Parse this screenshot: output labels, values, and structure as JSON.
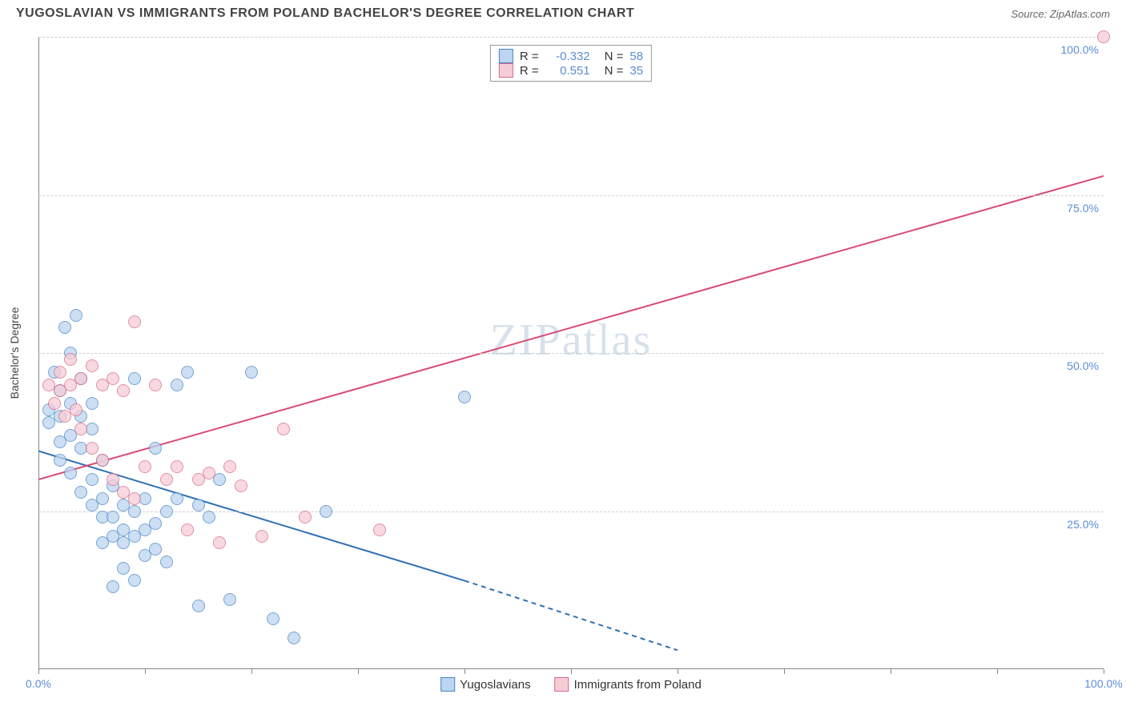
{
  "title": "YUGOSLAVIAN VS IMMIGRANTS FROM POLAND BACHELOR'S DEGREE CORRELATION CHART",
  "source_label": "Source: ",
  "source_value": "ZipAtlas.com",
  "watermark": "ZIPatlas",
  "chart": {
    "type": "scatter",
    "ylabel": "Bachelor's Degree",
    "xlim": [
      0,
      100
    ],
    "ylim": [
      0,
      100
    ],
    "yticks": [
      25,
      50,
      75,
      100
    ],
    "ytick_labels": [
      "25.0%",
      "50.0%",
      "75.0%",
      "100.0%"
    ],
    "xticks_major": [
      0,
      100
    ],
    "xtick_labels": [
      "0.0%",
      "100.0%"
    ],
    "xticks_minor": [
      10,
      20,
      30,
      40,
      50,
      60,
      70,
      80,
      90
    ],
    "grid_color": "#d0d0d0",
    "background_color": "#ffffff",
    "axis_color": "#888888",
    "tick_label_color": "#5b8dd6",
    "marker_size": 16,
    "series": [
      {
        "name": "Yugoslavians",
        "fill": "#bcd5f0",
        "stroke": "#4a86c5",
        "r_label": "R =",
        "r_value": "-0.332",
        "n_label": "N =",
        "n_value": "58",
        "trend": {
          "x1": 0,
          "y1": 34.5,
          "x2_solid": 40,
          "y2_solid": 14,
          "x2_dash": 60,
          "y2_dash": 3,
          "color": "#2f6fb3",
          "width": 2
        },
        "points": [
          [
            1,
            41
          ],
          [
            1,
            39
          ],
          [
            1.5,
            47
          ],
          [
            2,
            44
          ],
          [
            2,
            36
          ],
          [
            2,
            33
          ],
          [
            2,
            40
          ],
          [
            2.5,
            54
          ],
          [
            3,
            42
          ],
          [
            3,
            37
          ],
          [
            3,
            31
          ],
          [
            3,
            50
          ],
          [
            3.5,
            56
          ],
          [
            4,
            46
          ],
          [
            4,
            35
          ],
          [
            4,
            28
          ],
          [
            4,
            40
          ],
          [
            5,
            38
          ],
          [
            5,
            30
          ],
          [
            5,
            26
          ],
          [
            5,
            42
          ],
          [
            6,
            33
          ],
          [
            6,
            27
          ],
          [
            6,
            24
          ],
          [
            6,
            20
          ],
          [
            7,
            29
          ],
          [
            7,
            24
          ],
          [
            7,
            21
          ],
          [
            7,
            13
          ],
          [
            8,
            22
          ],
          [
            8,
            26
          ],
          [
            8,
            20
          ],
          [
            8,
            16
          ],
          [
            9,
            46
          ],
          [
            9,
            25
          ],
          [
            9,
            21
          ],
          [
            9,
            14
          ],
          [
            10,
            22
          ],
          [
            10,
            27
          ],
          [
            10,
            18
          ],
          [
            11,
            35
          ],
          [
            11,
            23
          ],
          [
            11,
            19
          ],
          [
            12,
            17
          ],
          [
            12,
            25
          ],
          [
            13,
            27
          ],
          [
            13,
            45
          ],
          [
            14,
            47
          ],
          [
            15,
            26
          ],
          [
            15,
            10
          ],
          [
            16,
            24
          ],
          [
            17,
            30
          ],
          [
            18,
            11
          ],
          [
            20,
            47
          ],
          [
            22,
            8
          ],
          [
            24,
            5
          ],
          [
            27,
            25
          ],
          [
            40,
            43
          ]
        ]
      },
      {
        "name": "Immigrants from Poland",
        "fill": "#f6cdd7",
        "stroke": "#d96a87",
        "r_label": "R =",
        "r_value": "0.551",
        "n_label": "N =",
        "n_value": "35",
        "trend": {
          "x1": 0,
          "y1": 30,
          "x2_solid": 100,
          "y2_solid": 78,
          "x2_dash": 100,
          "y2_dash": 78,
          "color": "#d94a72",
          "width": 2
        },
        "points": [
          [
            1,
            45
          ],
          [
            1.5,
            42
          ],
          [
            2,
            47
          ],
          [
            2,
            44
          ],
          [
            2.5,
            40
          ],
          [
            3,
            49
          ],
          [
            3,
            45
          ],
          [
            3.5,
            41
          ],
          [
            4,
            46
          ],
          [
            4,
            38
          ],
          [
            5,
            48
          ],
          [
            5,
            35
          ],
          [
            6,
            45
          ],
          [
            6,
            33
          ],
          [
            7,
            46
          ],
          [
            7,
            30
          ],
          [
            8,
            44
          ],
          [
            8,
            28
          ],
          [
            9,
            55
          ],
          [
            9,
            27
          ],
          [
            10,
            32
          ],
          [
            11,
            45
          ],
          [
            12,
            30
          ],
          [
            13,
            32
          ],
          [
            14,
            22
          ],
          [
            15,
            30
          ],
          [
            16,
            31
          ],
          [
            17,
            20
          ],
          [
            18,
            32
          ],
          [
            19,
            29
          ],
          [
            21,
            21
          ],
          [
            23,
            38
          ],
          [
            25,
            24
          ],
          [
            32,
            22
          ],
          [
            100,
            100
          ]
        ]
      }
    ],
    "legend_bottom": [
      {
        "label": "Yugoslavians",
        "fill": "#bcd5f0",
        "stroke": "#4a86c5"
      },
      {
        "label": "Immigrants from Poland",
        "fill": "#f6cdd7",
        "stroke": "#d96a87"
      }
    ]
  }
}
